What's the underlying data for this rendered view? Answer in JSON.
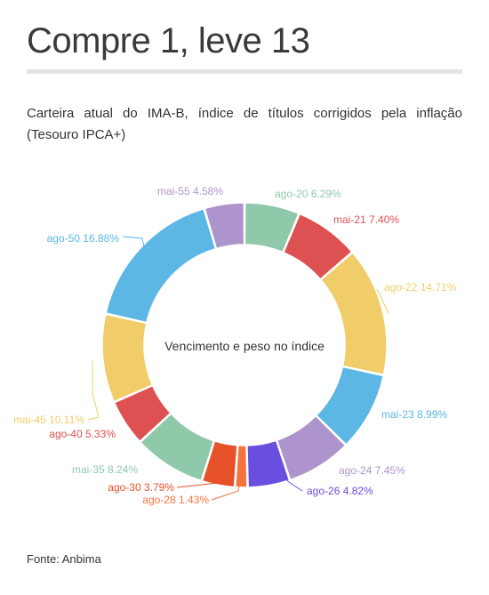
{
  "header": {
    "title": "Compre 1, leve 13",
    "subtitle": "Carteira atual do IMA-B, índice de títulos corrigidos pela inflação (Tesouro IPCA+)",
    "source": "Fonte: Anbima"
  },
  "chart_data": {
    "type": "pie",
    "variant": "donut",
    "center_label": "Vencimento e peso no índice",
    "unit": "%",
    "slices": [
      {
        "label": "ago-20",
        "value": 6.29,
        "color": "#8fc9a9"
      },
      {
        "label": "mai-21",
        "value": 7.4,
        "color": "#dd5152"
      },
      {
        "label": "ago-22",
        "value": 14.71,
        "color": "#f0cd68"
      },
      {
        "label": "mai-23",
        "value": 8.99,
        "color": "#5db7e5"
      },
      {
        "label": "ago-24",
        "value": 7.45,
        "color": "#ae94cc"
      },
      {
        "label": "ago-26",
        "value": 4.82,
        "color": "#6a4fde"
      },
      {
        "label": "ago-28",
        "value": 1.43,
        "color": "#f3743e"
      },
      {
        "label": "ago-30",
        "value": 3.79,
        "color": "#e6512a"
      },
      {
        "label": "mai-35",
        "value": 8.24,
        "color": "#8fc9a9"
      },
      {
        "label": "ago-40",
        "value": 5.33,
        "color": "#dd5152"
      },
      {
        "label": "mai-45",
        "value": 10.11,
        "color": "#f0cd68"
      },
      {
        "label": "ago-50",
        "value": 16.88,
        "color": "#5db7e5"
      },
      {
        "label": "mai-55",
        "value": 4.58,
        "color": "#ae94cc"
      }
    ]
  }
}
